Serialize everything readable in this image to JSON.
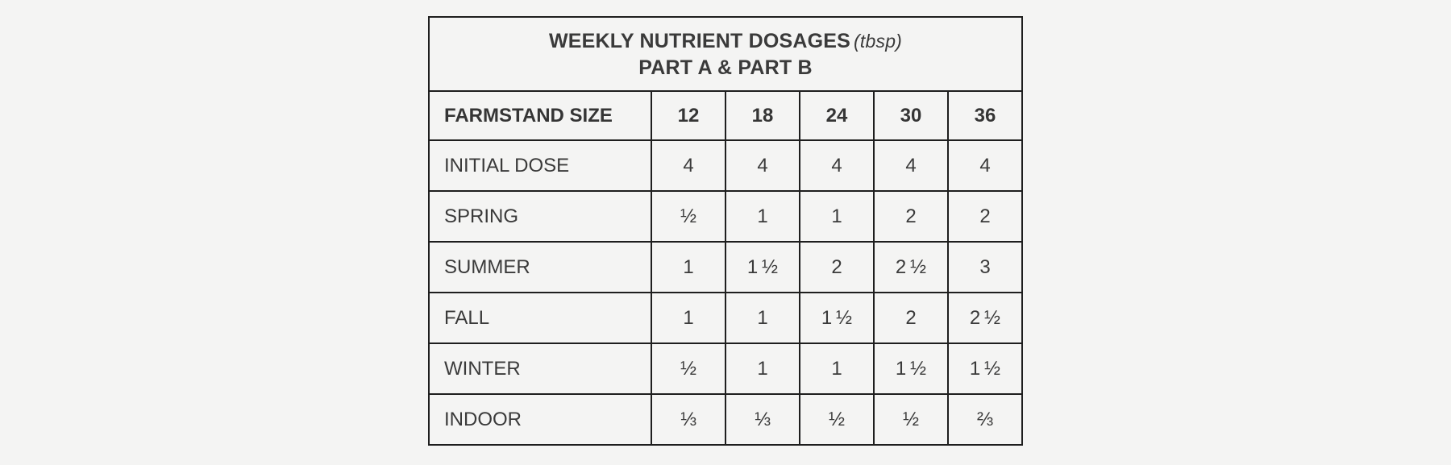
{
  "table": {
    "title": "WEEKLY NUTRIENT DOSAGES",
    "title_unit": "(tbsp)",
    "subtitle": "PART A & PART B",
    "header": {
      "label": "FARMSTAND SIZE",
      "sizes": [
        "12",
        "18",
        "24",
        "30",
        "36"
      ]
    },
    "rows": [
      {
        "label": "INITIAL DOSE",
        "values": [
          "4",
          "4",
          "4",
          "4",
          "4"
        ]
      },
      {
        "label": "SPRING",
        "values": [
          "½",
          "1",
          "1",
          "2",
          "2"
        ]
      },
      {
        "label": "SUMMER",
        "values": [
          "1",
          "1 ½",
          "2",
          "2 ½",
          "3"
        ]
      },
      {
        "label": "FALL",
        "values": [
          "1",
          "1",
          "1 ½",
          "2",
          "2 ½"
        ]
      },
      {
        "label": "WINTER",
        "values": [
          "½",
          "1",
          "1",
          "1 ½",
          "1 ½"
        ]
      },
      {
        "label": "INDOOR",
        "values": [
          "⅓",
          "⅓",
          "½",
          "½",
          "⅔"
        ]
      }
    ],
    "colors": {
      "page_background": "#f4f4f3",
      "border": "#1e1e1e",
      "text": "#3a3a3a"
    }
  },
  "chart_data": {
    "type": "table",
    "title": "WEEKLY NUTRIENT DOSAGES (tbsp)",
    "subtitle": "PART A & PART B",
    "unit": "tbsp",
    "columns": [
      "FARMSTAND SIZE",
      "12",
      "18",
      "24",
      "30",
      "36"
    ],
    "rows": [
      [
        "INITIAL DOSE",
        "4",
        "4",
        "4",
        "4",
        "4"
      ],
      [
        "SPRING",
        "½",
        "1",
        "1",
        "2",
        "2"
      ],
      [
        "SUMMER",
        "1",
        "1½",
        "2",
        "2½",
        "3"
      ],
      [
        "FALL",
        "1",
        "1",
        "1½",
        "2",
        "2½"
      ],
      [
        "WINTER",
        "½",
        "1",
        "1",
        "1½",
        "1½"
      ],
      [
        "INDOOR",
        "⅓",
        "⅓",
        "½",
        "½",
        "⅔"
      ]
    ]
  }
}
